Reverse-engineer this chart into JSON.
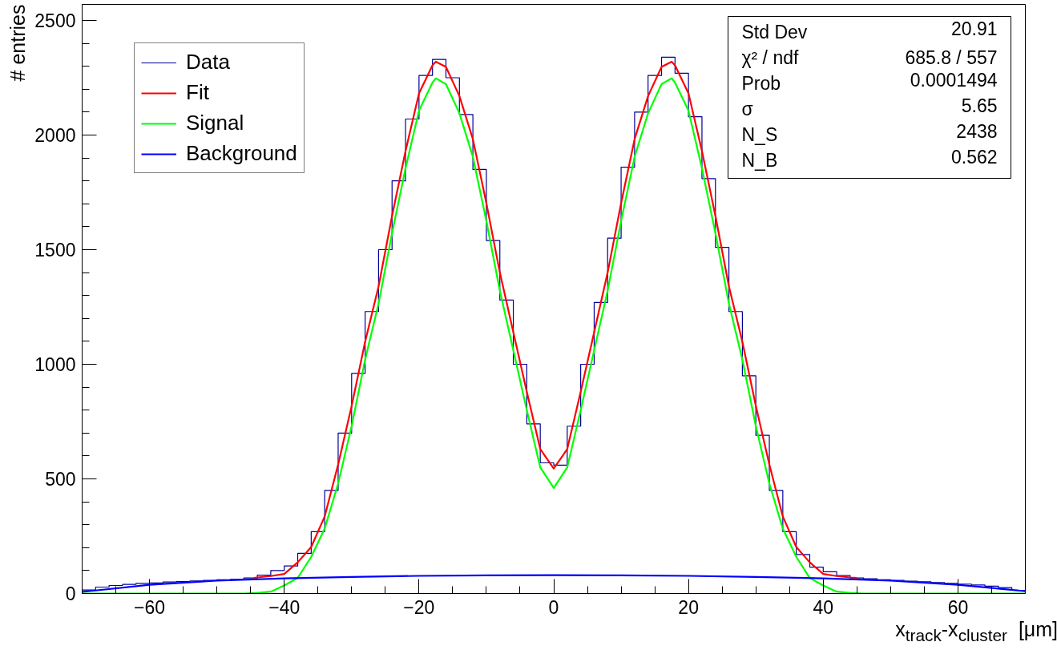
{
  "chart_data": {
    "type": "histogram",
    "xlabel": "x$_{track}$-x$_{cluster}$  [μm]",
    "ylabel": "# entries",
    "xlim": [
      -70,
      70
    ],
    "ylim": [
      0,
      2570
    ],
    "xticks": [
      {
        "value": -65,
        "label": null
      },
      -60,
      {
        "value": -55,
        "label": null
      },
      {
        "value": -50,
        "label": null
      },
      {
        "value": -45,
        "label": null
      },
      -40,
      {
        "value": -35,
        "label": null
      },
      {
        "value": -30,
        "label": null
      },
      {
        "value": -25,
        "label": null
      },
      -20,
      {
        "value": -15,
        "label": null
      },
      {
        "value": -10,
        "label": null
      },
      {
        "value": -5,
        "label": null
      },
      0,
      {
        "value": 5,
        "label": null
      },
      {
        "value": 10,
        "label": null
      },
      {
        "value": 15,
        "label": null
      },
      20,
      {
        "value": 25,
        "label": null
      },
      {
        "value": 30,
        "label": null
      },
      {
        "value": 35,
        "label": null
      },
      40,
      {
        "value": 45,
        "label": null
      },
      {
        "value": 50,
        "label": null
      },
      {
        "value": 55,
        "label": null
      },
      60,
      {
        "value": 65,
        "label": null
      }
    ],
    "yticks": [
      0,
      {
        "value": 100,
        "label": null
      },
      {
        "value": 200,
        "label": null
      },
      {
        "value": 300,
        "label": null
      },
      {
        "value": 400,
        "label": null
      },
      500,
      {
        "value": 600,
        "label": null
      },
      {
        "value": 700,
        "label": null
      },
      {
        "value": 800,
        "label": null
      },
      {
        "value": 900,
        "label": null
      },
      1000,
      {
        "value": 1100,
        "label": null
      },
      {
        "value": 1200,
        "label": null
      },
      {
        "value": 1300,
        "label": null
      },
      {
        "value": 1400,
        "label": null
      },
      1500,
      {
        "value": 1600,
        "label": null
      },
      {
        "value": 1700,
        "label": null
      },
      {
        "value": 1800,
        "label": null
      },
      {
        "value": 1900,
        "label": null
      },
      2000,
      {
        "value": 2100,
        "label": null
      },
      {
        "value": 2200,
        "label": null
      },
      {
        "value": 2300,
        "label": null
      },
      {
        "value": 2400,
        "label": null
      },
      2500
    ],
    "grid": false,
    "legend": "top left",
    "series": [
      {
        "name": "Data",
        "color": "#000099",
        "bins": [
          -70,
          -68,
          -66,
          -64,
          -62,
          -60,
          -58,
          -56,
          -54,
          -52,
          -50,
          -48,
          -46,
          -44,
          -42,
          -40,
          -38,
          -36,
          -34,
          -32,
          -30,
          -28,
          -26,
          -24,
          -22,
          -20,
          -18,
          -16,
          -14,
          -12,
          -10,
          -8,
          -6,
          -4,
          -2,
          0,
          2,
          4,
          6,
          8,
          10,
          12,
          14,
          16,
          18,
          20,
          22,
          24,
          26,
          28,
          30,
          32,
          34,
          36,
          38,
          40,
          42,
          44,
          46,
          48,
          50,
          52,
          54,
          56,
          58,
          60,
          62,
          64,
          66,
          68,
          70
        ],
        "values": [
          15,
          28,
          35,
          40,
          44,
          46,
          50,
          52,
          55,
          57,
          60,
          62,
          68,
          80,
          100,
          120,
          175,
          270,
          450,
          700,
          960,
          1230,
          1500,
          1800,
          2070,
          2260,
          2330,
          2250,
          2090,
          1850,
          1540,
          1280,
          1000,
          740,
          570,
          560,
          730,
          1000,
          1270,
          1550,
          1860,
          2100,
          2260,
          2340,
          2270,
          2080,
          1810,
          1510,
          1230,
          950,
          690,
          450,
          270,
          170,
          115,
          95,
          78,
          68,
          64,
          60,
          57,
          54,
          51,
          48,
          44,
          41,
          37,
          32,
          26,
          14
        ]
      },
      {
        "name": "Fit",
        "type": "line",
        "color": "#ff0000",
        "x": [
          -44.5,
          -44,
          -42,
          -40,
          -38,
          -36,
          -34,
          -32,
          -30,
          -28,
          -26,
          -24,
          -22,
          -20,
          -18,
          -17.5,
          -16,
          -14,
          -12,
          -10,
          -8,
          -6,
          -4,
          -2,
          0,
          2,
          4,
          6,
          8,
          10,
          12,
          14,
          16,
          17.5,
          18,
          20,
          22,
          24,
          26,
          28,
          30,
          32,
          34,
          36,
          38,
          40,
          42,
          44,
          45
        ],
        "values": [
          68,
          70,
          76,
          85,
          136,
          203,
          336,
          563,
          818,
          1098,
          1340,
          1647,
          1930,
          2182,
          2304,
          2320,
          2297,
          2170,
          1982,
          1703,
          1400,
          1140,
          880,
          630,
          545,
          630,
          880,
          1140,
          1400,
          1703,
          1982,
          2170,
          2297,
          2320,
          2304,
          2182,
          1930,
          1647,
          1340,
          1098,
          818,
          563,
          336,
          203,
          136,
          85,
          76,
          70,
          68
        ]
      },
      {
        "name": "Signal",
        "type": "line",
        "color": "#00ff00",
        "x": [
          -70,
          -46,
          -44,
          -42,
          -40,
          -38,
          -36,
          -34,
          -32,
          -30,
          -28,
          -26,
          -24,
          -22,
          -20,
          -18,
          -17.5,
          -16,
          -14,
          -12,
          -10,
          -8,
          -6,
          -4,
          -2,
          0,
          2,
          4,
          6,
          8,
          10,
          12,
          14,
          16,
          17.5,
          18,
          20,
          22,
          24,
          26,
          28,
          30,
          32,
          34,
          36,
          38,
          40,
          42,
          44,
          46,
          70
        ],
        "values": [
          0,
          0,
          2,
          8,
          35,
          68,
          160,
          283,
          480,
          730,
          1020,
          1265,
          1572,
          1855,
          2107,
          2229,
          2248,
          2222,
          2095,
          1905,
          1625,
          1321,
          1061,
          800,
          550,
          460,
          550,
          800,
          1061,
          1321,
          1625,
          1905,
          2095,
          2222,
          2248,
          2229,
          2107,
          1855,
          1572,
          1265,
          1020,
          730,
          480,
          283,
          160,
          68,
          35,
          8,
          2,
          0,
          0
        ]
      },
      {
        "name": "Background",
        "type": "line",
        "color": "#0000ff",
        "x": [
          -70,
          -60,
          -50,
          -40,
          -30,
          -20,
          -10,
          0,
          10,
          20,
          30,
          40,
          50,
          60,
          70
        ],
        "values": [
          7,
          38,
          56,
          66,
          72,
          77,
          79,
          80,
          79,
          77,
          72,
          66,
          56,
          38,
          10
        ]
      }
    ],
    "annotations": [
      "Std Dev",
      "20.91",
      "χ² / ndf",
      "685.8 / 557",
      "Prob",
      "0.0001494",
      "σ",
      "5.65",
      "N_S",
      "2438",
      "N_B",
      "0.562"
    ]
  }
}
